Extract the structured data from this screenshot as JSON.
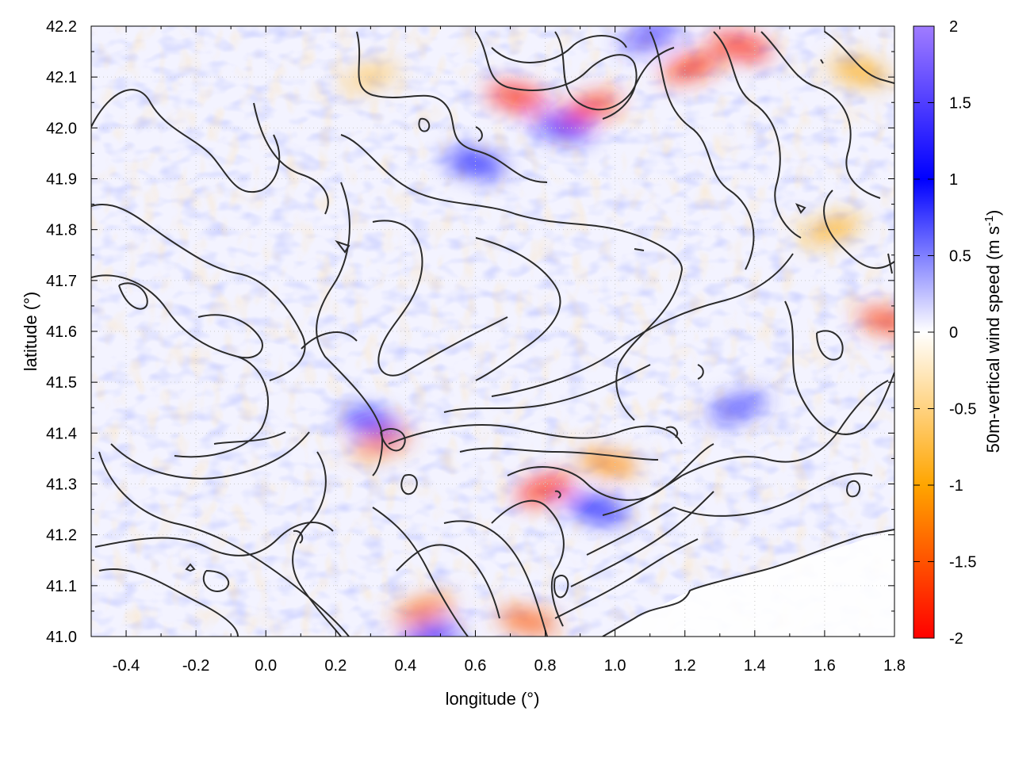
{
  "chart_data": {
    "type": "heatmap",
    "xlabel": "longitude (°)",
    "ylabel": "latitude (°)",
    "colorbar_label": "50m-vertical wind speed (m s",
    "colorbar_label_sup": "-1",
    "colorbar_label_end": ")",
    "xlim": [
      -0.5,
      1.8
    ],
    "ylim": [
      41.0,
      42.2
    ],
    "clim": [
      -2,
      2
    ],
    "x_ticks": [
      "-0.4",
      "-0.2",
      "0.0",
      "0.2",
      "0.4",
      "0.6",
      "0.8",
      "1.0",
      "1.2",
      "1.4",
      "1.6",
      "1.8"
    ],
    "x_tick_values": [
      -0.4,
      -0.2,
      0.0,
      0.2,
      0.4,
      0.6,
      0.8,
      1.0,
      1.2,
      1.4,
      1.6,
      1.8
    ],
    "y_ticks": [
      "41.0",
      "41.1",
      "41.2",
      "41.3",
      "41.4",
      "41.5",
      "41.6",
      "41.7",
      "41.8",
      "41.9",
      "42.0",
      "42.1",
      "42.2"
    ],
    "y_tick_values": [
      41.0,
      41.1,
      41.2,
      41.3,
      41.4,
      41.5,
      41.6,
      41.7,
      41.8,
      41.9,
      42.0,
      42.1,
      42.2
    ],
    "colorbar_ticks": [
      "2",
      "1.5",
      "1",
      "0.5",
      "0",
      "-0.5",
      "-1",
      "-1.5",
      "-2"
    ],
    "colorbar_tick_values": [
      2,
      1.5,
      1,
      0.5,
      0,
      -0.5,
      -1,
      -1.5,
      -2
    ],
    "colorscale": [
      {
        "value": -2,
        "color": "#ff0000"
      },
      {
        "value": -1,
        "color": "#ffa500"
      },
      {
        "value": 0,
        "color": "#ffffff"
      },
      {
        "value": 1,
        "color": "#0000ff"
      },
      {
        "value": 2,
        "color": "#a07cff"
      }
    ],
    "grid": true,
    "grid_style": "dotted",
    "contours": "black terrain isolines",
    "strong_features": [
      {
        "lon": 0.72,
        "lat": 42.06,
        "value": -1.9
      },
      {
        "lon": 0.93,
        "lat": 42.04,
        "value": -1.8
      },
      {
        "lon": 0.85,
        "lat": 42.0,
        "value": 1.2
      },
      {
        "lon": 1.22,
        "lat": 42.12,
        "value": -1.8
      },
      {
        "lon": 1.36,
        "lat": 42.16,
        "value": -1.9
      },
      {
        "lon": 1.1,
        "lat": 42.18,
        "value": 1.4
      },
      {
        "lon": 0.6,
        "lat": 41.93,
        "value": 1.0
      },
      {
        "lon": 0.8,
        "lat": 41.29,
        "value": -1.9
      },
      {
        "lon": 0.98,
        "lat": 41.34,
        "value": -1.2
      },
      {
        "lon": 0.33,
        "lat": 41.38,
        "value": -1.3
      },
      {
        "lon": 0.3,
        "lat": 41.42,
        "value": 1.0
      },
      {
        "lon": 0.45,
        "lat": 41.05,
        "value": -1.4
      },
      {
        "lon": 0.75,
        "lat": 41.03,
        "value": -1.5
      },
      {
        "lon": 0.47,
        "lat": 41.0,
        "value": 1.0
      },
      {
        "lon": 1.78,
        "lat": 41.62,
        "value": -1.7
      },
      {
        "lon": 1.62,
        "lat": 41.8,
        "value": -0.9
      },
      {
        "lon": 1.7,
        "lat": 42.11,
        "value": -1.0
      },
      {
        "lon": 0.3,
        "lat": 42.1,
        "value": -0.6
      },
      {
        "lon": 0.95,
        "lat": 41.25,
        "value": 1.0
      },
      {
        "lon": 1.35,
        "lat": 41.45,
        "value": 0.8
      }
    ]
  }
}
